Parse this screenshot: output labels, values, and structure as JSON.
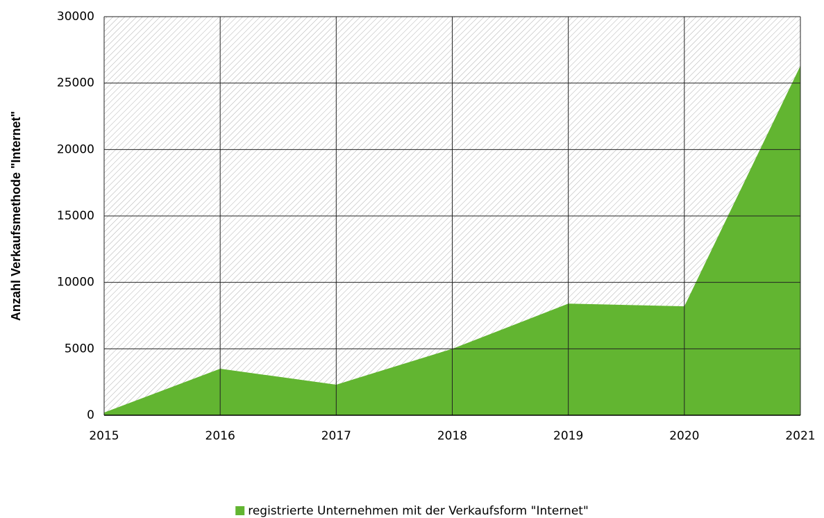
{
  "chart_data": {
    "type": "area",
    "y_label": "Anzahl Verkaufsmethode \"Internet\"",
    "x": [
      2015,
      2016,
      2017,
      2018,
      2019,
      2020,
      2021
    ],
    "series": [
      {
        "name": "registrierte Unternehmen mit der Verkaufsform \"Internet\"",
        "color": "#62b531",
        "values": [
          200,
          3500,
          2300,
          5000,
          8400,
          8200,
          26300
        ]
      }
    ],
    "xlim": [
      2015,
      2021
    ],
    "xticks": [
      2015,
      2016,
      2017,
      2018,
      2019,
      2020,
      2021
    ],
    "ylim": [
      0,
      30000
    ],
    "yticks": [
      0,
      5000,
      10000,
      15000,
      20000,
      25000,
      30000
    ],
    "grid": true,
    "legend": "bottom"
  }
}
